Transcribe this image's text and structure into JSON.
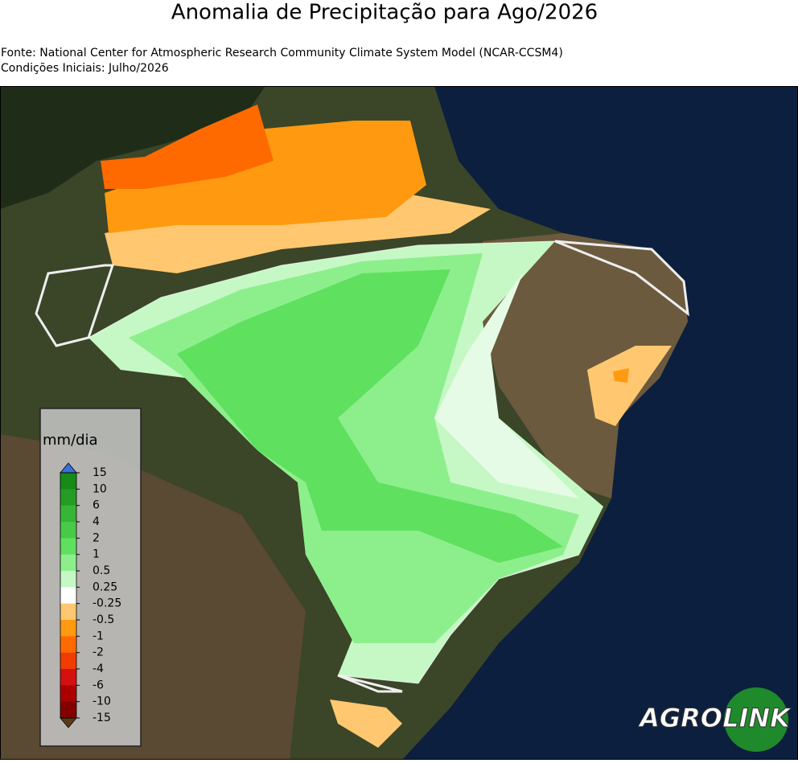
{
  "header": {
    "title": "Anomalia de Precipitação para Ago/2026",
    "source": "Fonte: National Center for Atmospheric Research Community Climate System Model (NCAR-CCSM4)",
    "initial": "Condições Iniciais: Julho/2026"
  },
  "legend": {
    "unit": "mm/dia",
    "ticks": [
      15,
      10,
      6,
      4,
      2,
      1,
      0.5,
      0.25,
      -0.25,
      -0.5,
      -1,
      -2,
      -4,
      -6,
      -10,
      -15
    ],
    "colors": [
      "#178a17",
      "#259c25",
      "#36b536",
      "#48c948",
      "#5fe05f",
      "#8cef8c",
      "#c5f8c5",
      "#ffffff",
      "#ffc870",
      "#ff9a10",
      "#ff6a00",
      "#f03c00",
      "#d41010",
      "#ac0000",
      "#840000"
    ],
    "over_color": "#3b6fd8",
    "under_color": "#5a3a1a"
  },
  "logo": {
    "left": "AGRO",
    "right": "LINK"
  }
}
